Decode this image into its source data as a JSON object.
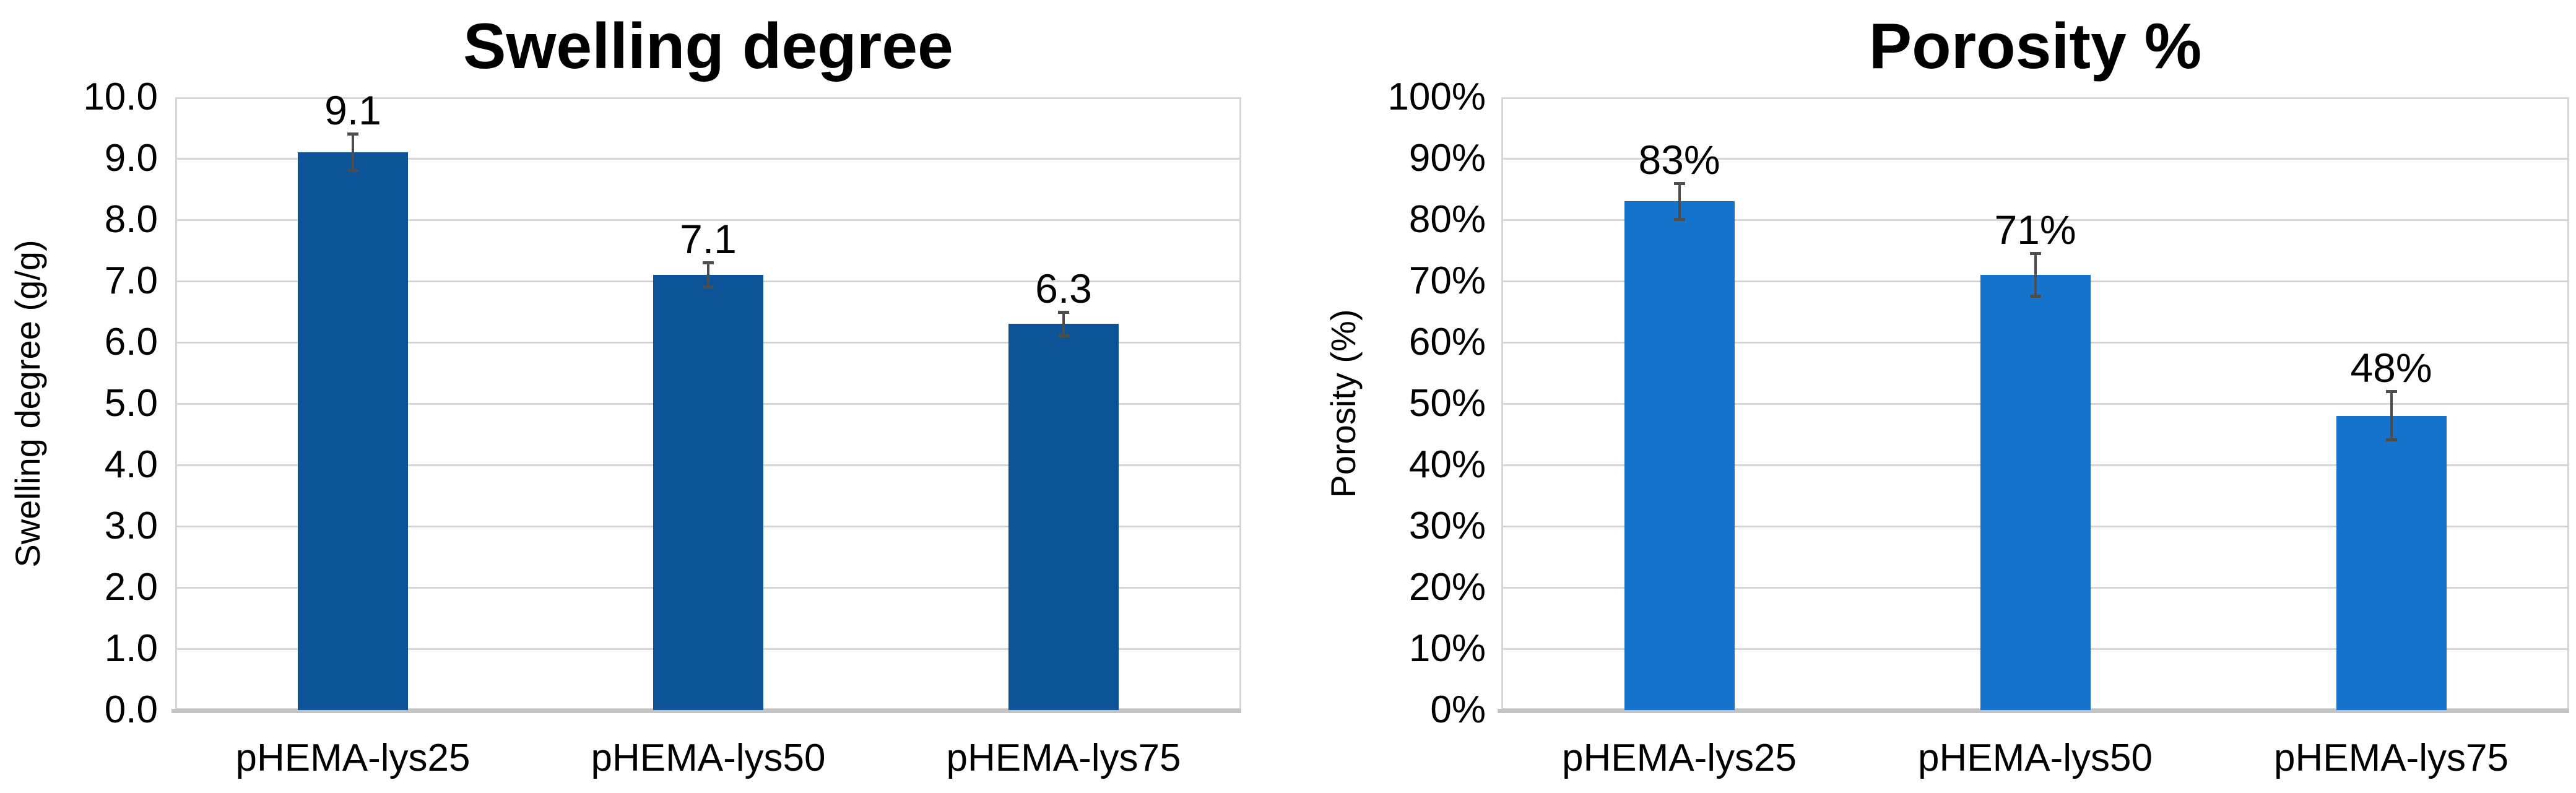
{
  "figure": {
    "background": "#FFFFFF"
  },
  "chart_data": [
    {
      "type": "bar",
      "title": "Swelling degree",
      "xlabel": "",
      "ylabel": "Swelling degree (g/g)",
      "categories": [
        "pHEMA-lys25",
        "pHEMA-lys50",
        "pHEMA-lys75"
      ],
      "values": [
        9.1,
        7.1,
        6.3
      ],
      "value_labels": [
        "9.1",
        "7.1",
        "6.3"
      ],
      "error_bars_plus_minus": [
        0.3,
        0.2,
        0.2
      ],
      "ylim": [
        0,
        10
      ],
      "ytick_values": [
        0,
        1,
        2,
        3,
        4,
        5,
        6,
        7,
        8,
        9,
        10
      ],
      "ytick_labels": [
        "0.0",
        "1.0",
        "2.0",
        "3.0",
        "4.0",
        "5.0",
        "6.0",
        "7.0",
        "8.0",
        "9.0",
        "10.0"
      ],
      "grid": true,
      "legend_position": "none",
      "colors": {
        "bar": "#0C5497",
        "gridline": "#D6D6D6",
        "axis_line": "#C3C3C3",
        "error_bar": "#4D4D4D",
        "text": "#000000"
      }
    },
    {
      "type": "bar",
      "title": "Porosity %",
      "xlabel": "",
      "ylabel": "Porosity (%)",
      "categories": [
        "pHEMA-lys25",
        "pHEMA-lys50",
        "pHEMA-lys75"
      ],
      "values": [
        83,
        71,
        48
      ],
      "value_labels": [
        "83%",
        "71%",
        "48%"
      ],
      "error_bars_plus_minus": [
        3,
        3.5,
        4
      ],
      "ylim": [
        0,
        100
      ],
      "ytick_values": [
        0,
        10,
        20,
        30,
        40,
        50,
        60,
        70,
        80,
        90,
        100
      ],
      "ytick_labels": [
        "0%",
        "10%",
        "20%",
        "30%",
        "40%",
        "50%",
        "60%",
        "70%",
        "80%",
        "90%",
        "100%"
      ],
      "grid": true,
      "legend_position": "none",
      "colors": {
        "bar": "#1673CB",
        "gridline": "#D6D6D6",
        "axis_line": "#C3C3C3",
        "error_bar": "#4D4D4D",
        "text": "#000000"
      }
    }
  ]
}
